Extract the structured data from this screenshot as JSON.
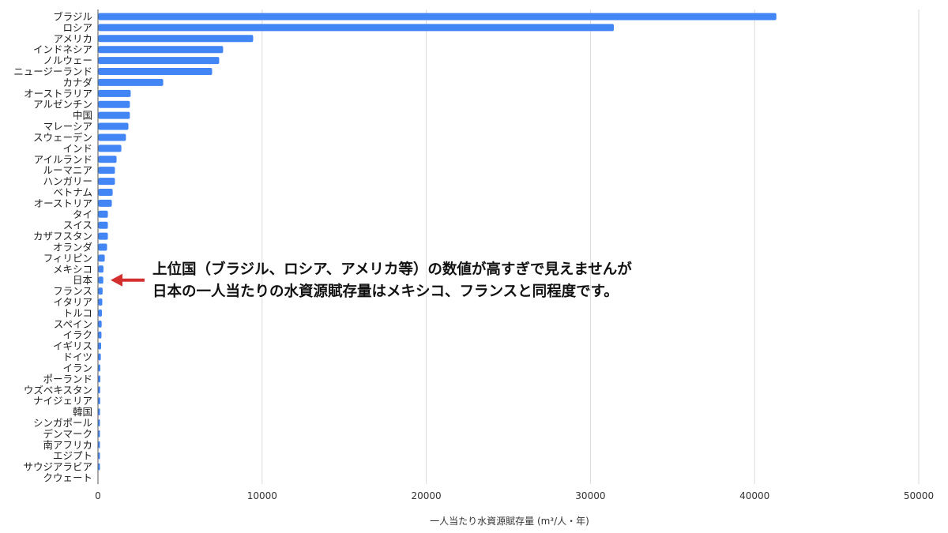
{
  "chart_data": {
    "type": "bar",
    "orientation": "horizontal",
    "title": "",
    "xlabel": "一人当たり水資源賦存量 (m³/人・年)",
    "ylabel": "",
    "xlim": [
      0,
      50000
    ],
    "xticks": [
      "0",
      "10000",
      "20000",
      "30000",
      "40000",
      "50000"
    ],
    "grid": true,
    "bar_color": "#4285f4",
    "categories": [
      "ブラジル",
      "ロシア",
      "アメリカ",
      "インドネシア",
      "ノルウェー",
      "ニュージーランド",
      "カナダ",
      "オーストラリア",
      "アルゼンチン",
      "中国",
      "マレーシア",
      "スウェーデン",
      "インド",
      "アイルランド",
      "ルーマニア",
      "ハンガリー",
      "ベトナム",
      "オーストリア",
      "タイ",
      "スイス",
      "カザフスタン",
      "オランダ",
      "フィリピン",
      "メキシコ",
      "日本",
      "フランス",
      "イタリア",
      "トルコ",
      "スペイン",
      "イラク",
      "イギリス",
      "ドイツ",
      "イラン",
      "ポーランド",
      "ウズベキスタン",
      "ナイジェリア",
      "韓国",
      "シンガポール",
      "デンマーク",
      "南アフリカ",
      "エジプト",
      "サウジアラビア",
      "クウェート"
    ],
    "values": [
      41300,
      31400,
      9430,
      7600,
      7360,
      6930,
      3950,
      1970,
      1920,
      1920,
      1830,
      1680,
      1400,
      1110,
      1010,
      1010,
      870,
      820,
      580,
      580,
      580,
      530,
      390,
      310,
      300,
      260,
      240,
      220,
      200,
      190,
      170,
      150,
      120,
      120,
      110,
      110,
      100,
      60,
      60,
      80,
      20,
      5,
      0
    ],
    "annotation": {
      "lines": [
        "上位国（ブラジル、ロシア、アメリカ等）の数値が高すぎで見えませんが",
        "日本の一人当たりの水資源賦存量はメキシコ、フランスと同程度です。"
      ],
      "target": "日本",
      "arrow_color": "#d32f2f"
    }
  }
}
